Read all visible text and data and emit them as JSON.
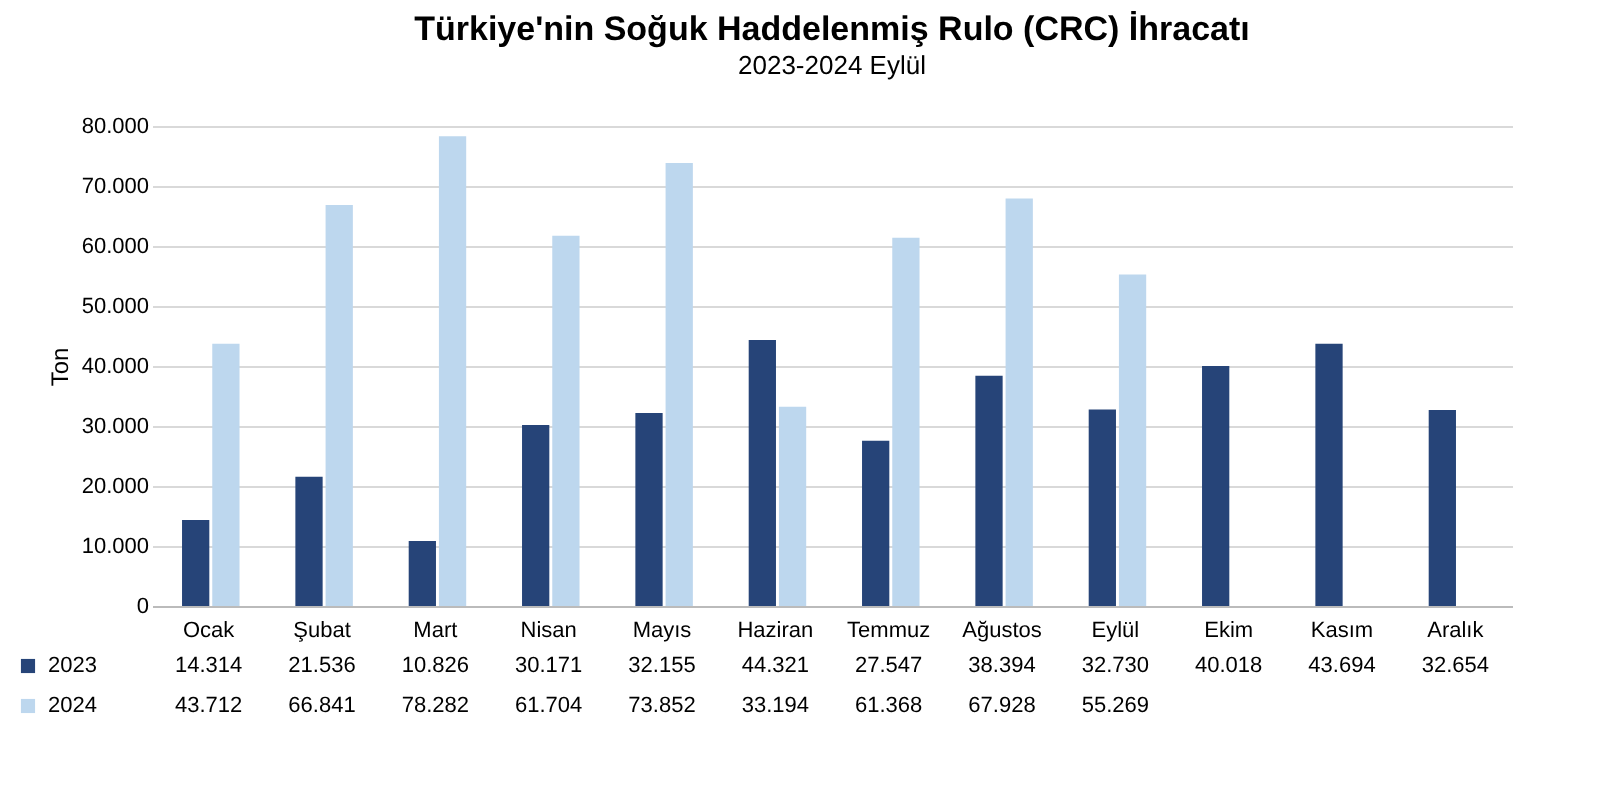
{
  "chart_data": {
    "type": "bar",
    "title": "Türkiye'nin Soğuk Haddelenmiş Rulo (CRC) İhracatı",
    "subtitle": "2023-2024 Eylül",
    "ylabel": "Ton",
    "categories": [
      "Ocak",
      "Şubat",
      "Mart",
      "Nisan",
      "Mayıs",
      "Haziran",
      "Temmuz",
      "Ağustos",
      "Eylül",
      "Ekim",
      "Kasım",
      "Aralık"
    ],
    "series": [
      {
        "name": "2023",
        "color": "#264478",
        "values": [
          14314,
          21536,
          10826,
          30171,
          32155,
          44321,
          27547,
          38394,
          32730,
          40018,
          43694,
          32654
        ],
        "value_labels": [
          "14.314",
          "21.536",
          "10.826",
          "30.171",
          "32.155",
          "44.321",
          "27.547",
          "38.394",
          "32.730",
          "40.018",
          "43.694",
          "32.654"
        ]
      },
      {
        "name": "2024",
        "color": "#bdd7ee",
        "values": [
          43712,
          66841,
          78282,
          61704,
          73852,
          33194,
          61368,
          67928,
          55269,
          null,
          null,
          null
        ],
        "value_labels": [
          "43.712",
          "66.841",
          "78.282",
          "61.704",
          "73.852",
          "33.194",
          "61.368",
          "67.928",
          "55.269",
          null,
          null,
          null
        ]
      }
    ],
    "ylim": [
      0,
      80000
    ],
    "yticks": [
      0,
      {
        "value": 10000,
        "label": "10.000"
      },
      {
        "value": 20000,
        "label": "20.000"
      },
      {
        "value": 30000,
        "label": "30.000"
      },
      {
        "value": 40000,
        "label": "40.000"
      },
      {
        "value": 50000,
        "label": "50.000"
      },
      {
        "value": 60000,
        "label": "60.000"
      },
      {
        "value": 70000,
        "label": "70.000"
      },
      {
        "value": 80000,
        "label": "80.000"
      }
    ],
    "grid": "y",
    "legend": "bottom"
  }
}
